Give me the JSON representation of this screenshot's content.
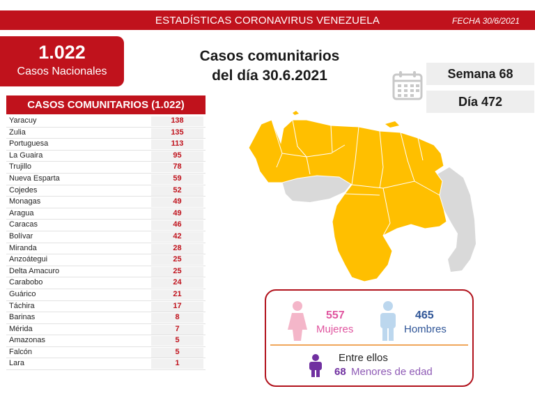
{
  "header": {
    "title": "ESTADÍSTICAS CORONAVIRUS VENEZUELA",
    "date": "FECHA 30/6/2021"
  },
  "national": {
    "count": "1.022",
    "label": "Casos Nacionales"
  },
  "headline": {
    "line1": "Casos comunitarios",
    "line2": "del día 30.6.2021"
  },
  "week": "Semana 68",
  "day": "Día 472",
  "table": {
    "title": "CASOS COMUNITARIOS (1.022)",
    "rows": [
      {
        "state": "Yaracuy",
        "cases": "138"
      },
      {
        "state": "Zulia",
        "cases": "135"
      },
      {
        "state": "Portuguesa",
        "cases": "113"
      },
      {
        "state": "La Guaira",
        "cases": "95"
      },
      {
        "state": "Trujillo",
        "cases": "78"
      },
      {
        "state": "Nueva Esparta",
        "cases": "59"
      },
      {
        "state": "Cojedes",
        "cases": "52"
      },
      {
        "state": "Monagas",
        "cases": "49"
      },
      {
        "state": "Aragua",
        "cases": "49"
      },
      {
        "state": "Caracas",
        "cases": "46"
      },
      {
        "state": "Bolívar",
        "cases": "42"
      },
      {
        "state": "Miranda",
        "cases": "28"
      },
      {
        "state": "Anzoátegui",
        "cases": "25"
      },
      {
        "state": "Delta Amacuro",
        "cases": "25"
      },
      {
        "state": "Carabobo",
        "cases": "24"
      },
      {
        "state": "Guárico",
        "cases": "21"
      },
      {
        "state": "Táchira",
        "cases": "17"
      },
      {
        "state": "Barinas",
        "cases": "8"
      },
      {
        "state": "Mérida",
        "cases": "7"
      },
      {
        "state": "Amazonas",
        "cases": "5"
      },
      {
        "state": "Falcón",
        "cases": "5"
      },
      {
        "state": "Lara",
        "cases": "1"
      }
    ]
  },
  "gender": {
    "women_count": "557",
    "women_label": "Mujeres",
    "men_count": "465",
    "men_label": "Hombres",
    "among_label": "Entre ellos",
    "minors_count": "68",
    "minors_label": "Menores de edad"
  },
  "colors": {
    "brand_red": "#c0121c",
    "map_yellow": "#ffbf00",
    "map_gray": "#d9d9d9",
    "women_pink": "#e0559f",
    "men_blue": "#2f5597",
    "minors_purple": "#7030a0"
  },
  "icons": {
    "calendar": "calendar-icon",
    "woman": "woman-figure-icon",
    "man": "man-figure-icon",
    "child": "child-figure-icon"
  }
}
